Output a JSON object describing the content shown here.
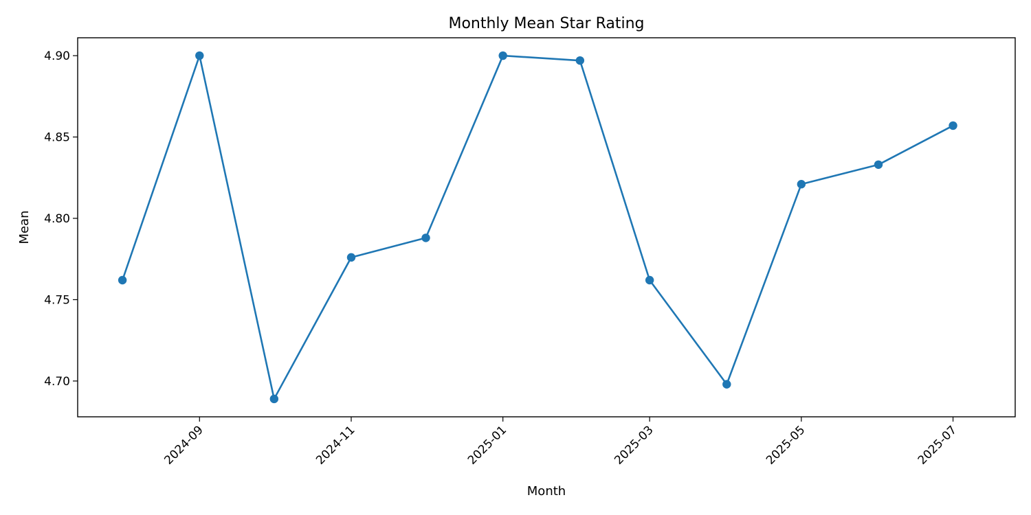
{
  "chart_data": {
    "type": "line",
    "title": "Monthly Mean Star Rating",
    "xlabel": "Month",
    "ylabel": "Mean",
    "x": [
      "2024-08",
      "2024-09",
      "2024-10",
      "2024-11",
      "2024-12",
      "2025-01",
      "2025-02",
      "2025-03",
      "2025-04",
      "2025-05",
      "2025-06",
      "2025-07"
    ],
    "series": [
      {
        "values": [
          4.762,
          4.9,
          4.689,
          4.776,
          4.788,
          4.9,
          4.897,
          4.762,
          4.698,
          4.821,
          4.833,
          4.857
        ]
      }
    ],
    "x_ticks": [
      "2024-09",
      "2024-11",
      "2025-01",
      "2025-03",
      "2025-05",
      "2025-07"
    ],
    "y_ticks": [
      "4.70",
      "4.75",
      "4.80",
      "4.85",
      "4.90"
    ],
    "ylim": [
      4.678,
      4.911
    ],
    "xlim": [
      "2024-07-14",
      "2025-07-26"
    ],
    "grid": false,
    "line_color": "#1f77b4",
    "marker": "circle"
  }
}
